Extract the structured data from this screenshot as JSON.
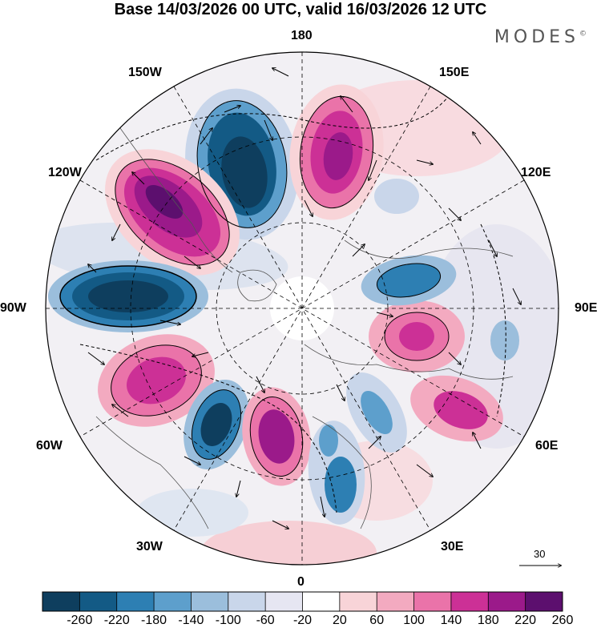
{
  "title": "Base 14/03/2026 00 UTC, valid 16/03/2026 12 UTC",
  "logo": "MODES",
  "logo_mark": "©",
  "map": {
    "projection": "north polar stereographic",
    "longitude_labels": {
      "top": "180",
      "top_left": "150W",
      "top_right": "150E",
      "upper_left": "120W",
      "upper_right": "120E",
      "left": "90W",
      "right": "90E",
      "lower_left": "60W",
      "lower_right": "60E",
      "bottom_left": "30W",
      "bottom_right": "30E",
      "bottom": "0"
    },
    "reference_vector": "30"
  },
  "colorbar": {
    "ticks": [
      "-260",
      "-220",
      "-180",
      "-140",
      "-100",
      "-60",
      "-20",
      "20",
      "60",
      "100",
      "140",
      "180",
      "220",
      "260"
    ],
    "colors": [
      "#0e3e5e",
      "#135a85",
      "#2d7fb3",
      "#5d9fcc",
      "#9bbedc",
      "#c9d6ea",
      "#e6e6f2",
      "#ffffff",
      "#f8d4d8",
      "#f3aac0",
      "#ea73a9",
      "#cc3096",
      "#9b1a8a",
      "#5c0f6e"
    ]
  }
}
